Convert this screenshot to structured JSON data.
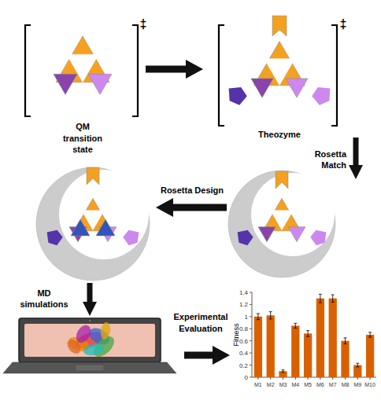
{
  "chart_data": {
    "type": "bar",
    "categories": [
      "M1",
      "M2",
      "M3",
      "M4",
      "M5",
      "M6",
      "M7",
      "M8",
      "M9",
      "M10"
    ],
    "values": [
      1.0,
      1.02,
      0.1,
      0.85,
      0.72,
      1.3,
      1.3,
      0.6,
      0.2,
      0.7
    ],
    "errors": [
      0.05,
      0.06,
      0.02,
      0.04,
      0.05,
      0.07,
      0.06,
      0.05,
      0.03,
      0.04
    ],
    "color": "#D96000",
    "ylabel": "Fitness",
    "ylim": [
      0,
      1.4
    ],
    "yticks": [
      0,
      0.2,
      0.4,
      0.6,
      0.8,
      1,
      1.2,
      1.4
    ],
    "annotations": [
      "‡",
      "QM\ntransition\nstate",
      "‡",
      "Theozyme",
      "Rosetta\nMatch",
      "Rosetta Design",
      "MD\nsimulations",
      "Experimental\nEvaluation"
    ]
  }
}
